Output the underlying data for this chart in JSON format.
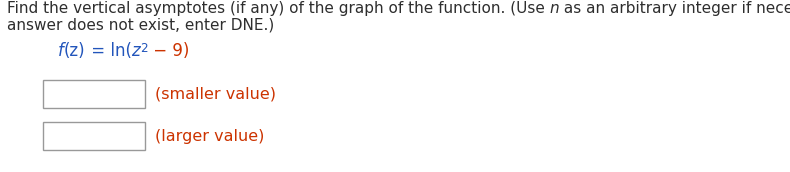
{
  "background_color": "#ffffff",
  "dark_color": "#2e2e2e",
  "blue_color": "#2255bb",
  "red_color": "#cc3300",
  "box_edge_color": "#999999",
  "font_size_main": 11.0,
  "font_size_func": 12.0,
  "font_size_label": 11.5,
  "line1_parts": [
    {
      "text": "Find the vertical asymptotes (if any) of the graph of the function. (Use ",
      "style": "normal",
      "color": "dark"
    },
    {
      "text": "n",
      "style": "italic",
      "color": "dark"
    },
    {
      "text": " as an arbitrary integer if necessary. If an",
      "style": "normal",
      "color": "dark"
    }
  ],
  "line2": "answer does not exist, enter DNE.)",
  "func_parts": [
    {
      "text": "f",
      "style": "italic",
      "color": "blue"
    },
    {
      "text": "(z)",
      "style": "normal",
      "color": "blue"
    },
    {
      "text": " = ln(",
      "style": "normal",
      "color": "blue"
    },
    {
      "text": "z",
      "style": "italic",
      "color": "blue"
    },
    {
      "text": "2",
      "style": "normal",
      "color": "blue",
      "superscript": true
    },
    {
      "text": " − 9)",
      "style": "normal",
      "color": "red"
    }
  ],
  "label_smaller": "(smaller value)",
  "label_larger": "(larger value)"
}
